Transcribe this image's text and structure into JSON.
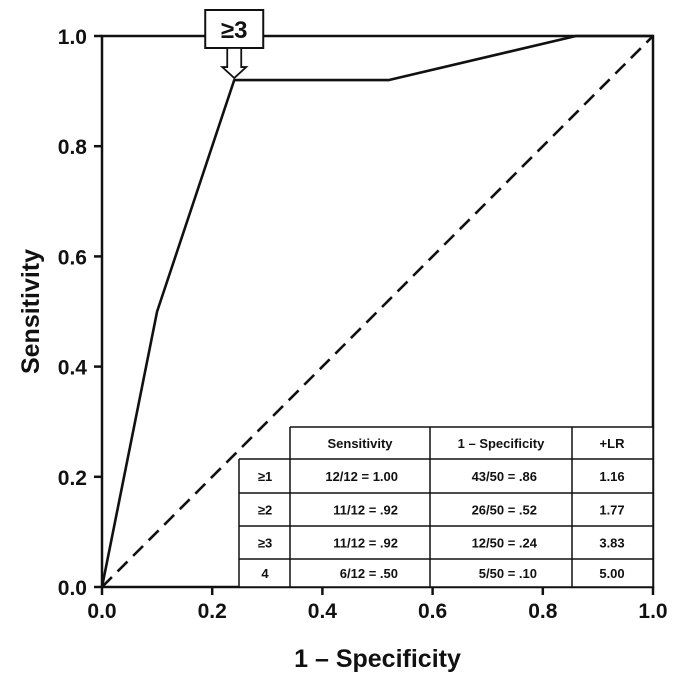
{
  "chart_data": {
    "type": "line",
    "xlabel": "1 – Specificity",
    "ylabel": "Sensitivity",
    "xlim": [
      0.0,
      1.0
    ],
    "ylim": [
      0.0,
      1.0
    ],
    "xticks": [
      "0.0",
      "0.2",
      "0.4",
      "0.6",
      "0.8",
      "1.0"
    ],
    "yticks": [
      "0.0",
      "0.2",
      "0.4",
      "0.6",
      "0.8",
      "1.0"
    ],
    "grid": false,
    "series": [
      {
        "style": "solid",
        "x": [
          0.0,
          0.1,
          0.24,
          0.52,
          0.86,
          1.0
        ],
        "y": [
          0.0,
          0.5,
          0.92,
          0.92,
          1.0,
          1.0
        ]
      },
      {
        "style": "dashed",
        "x": [
          0.0,
          1.0
        ],
        "y": [
          0.0,
          1.0
        ]
      }
    ],
    "annotation": {
      "text": "≥3",
      "x": 0.24,
      "y": 0.92
    },
    "table": {
      "headers": [
        "",
        "Sensitivity",
        "1 – Specificity",
        "+LR"
      ],
      "rows": [
        [
          "≥1",
          "12/12 = 1.00",
          "43/50 = .86",
          "1.16"
        ],
        [
          "≥2",
          "11/12 = .92",
          "26/50 = .52",
          "1.77"
        ],
        [
          "≥3",
          "11/12 = .92",
          "12/50 = .24",
          "3.83"
        ],
        [
          "4",
          "6/12 = .50",
          "5/50 = .10",
          "5.00"
        ]
      ]
    }
  }
}
